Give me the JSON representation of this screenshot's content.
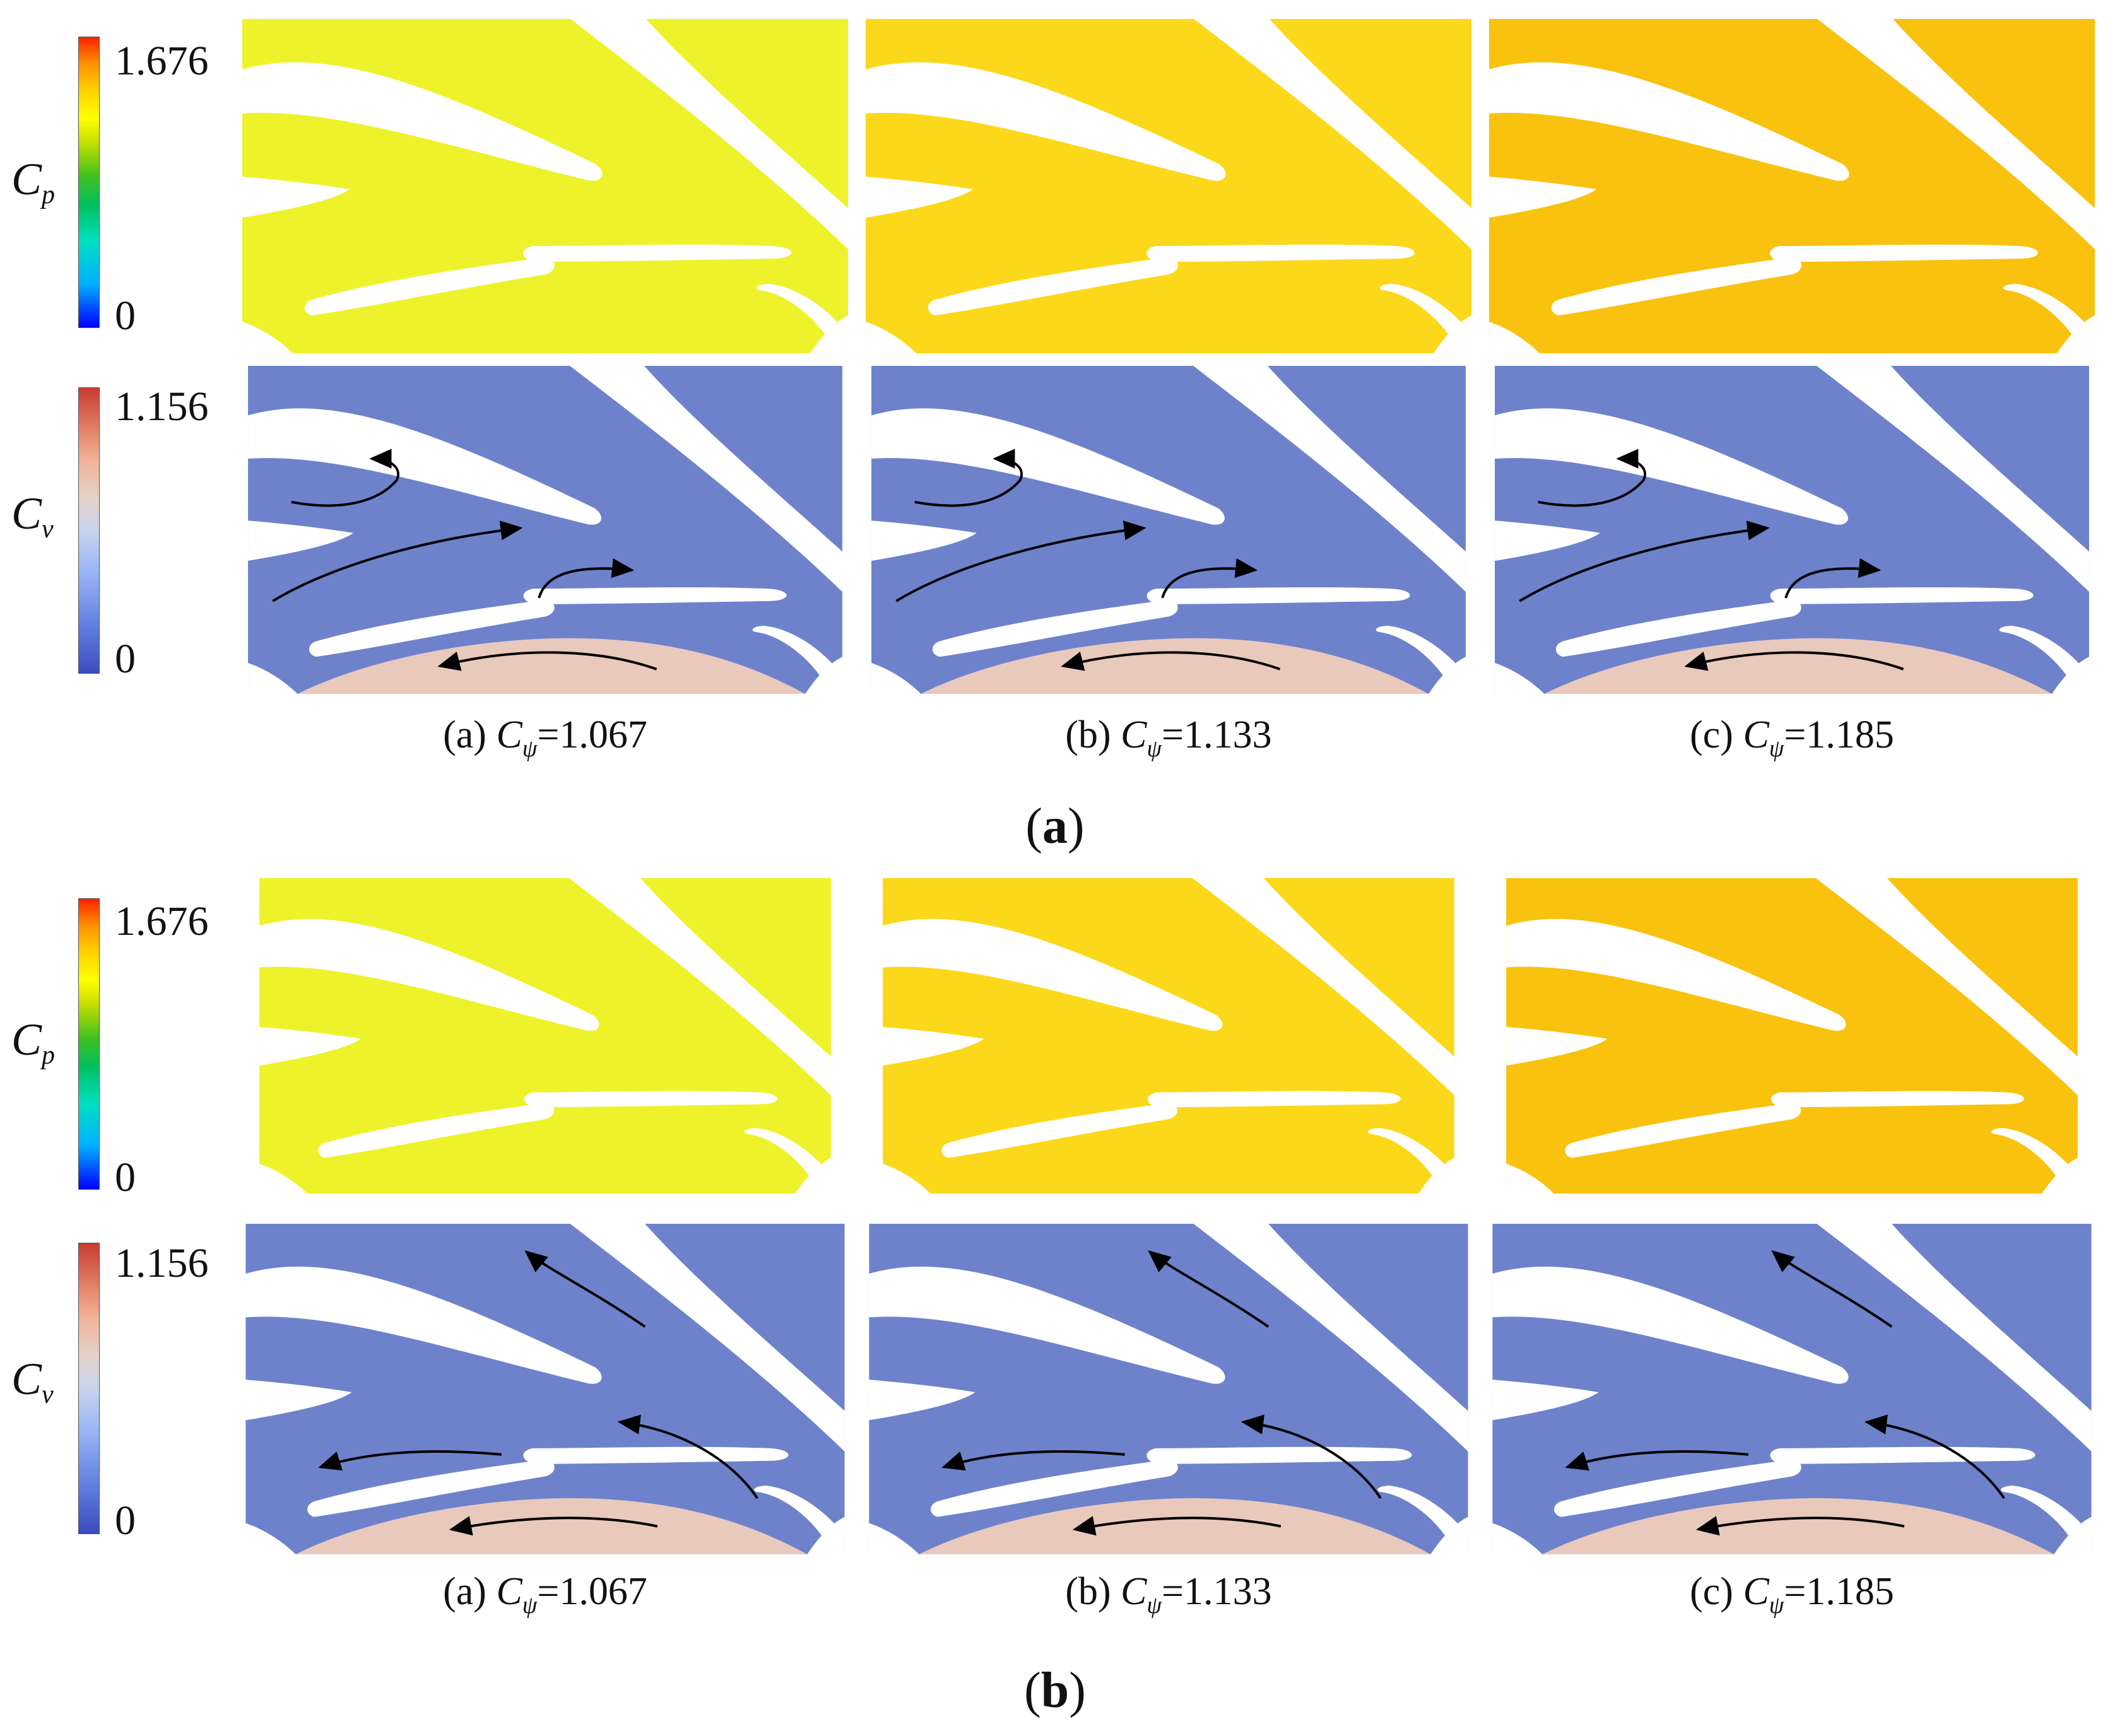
{
  "figure": {
    "colorbar_cp": {
      "symbol": "C",
      "sub": "p",
      "max": "1.676",
      "min": "0"
    },
    "colorbar_cv": {
      "symbol": "C",
      "sub": "v",
      "max": "1.156",
      "min": "0"
    },
    "cases": [
      {
        "prefix": "(a) ",
        "symbol": "C",
        "sub": "ψ",
        "value": "=1.067"
      },
      {
        "prefix": "(b) ",
        "symbol": "C",
        "sub": "ψ",
        "value": "=1.133"
      },
      {
        "prefix": "(c) ",
        "symbol": "C",
        "sub": "ψ",
        "value": "=1.185"
      }
    ],
    "subfigures": [
      {
        "open": "(",
        "letter": "a",
        "close": ")"
      },
      {
        "open": "(",
        "letter": "b",
        "close": ")"
      }
    ],
    "colors": {
      "cp_1067": "#eef22a",
      "cp_1133": "#fbd81a",
      "cp_1185": "#f9c20e",
      "cv_field": "#6e82cc",
      "cv_lower": "#e9c9bc"
    }
  }
}
